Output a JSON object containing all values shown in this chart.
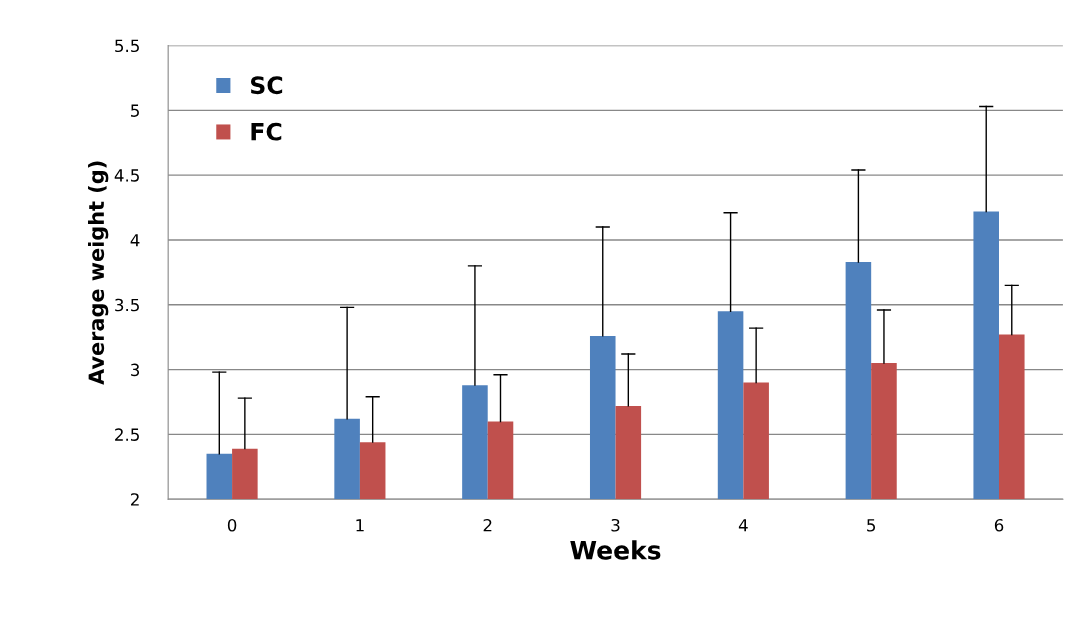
{
  "chart_data": {
    "type": "bar",
    "xlabel": "Weeks",
    "ylabel": "Average weight (g)",
    "categories": [
      "0",
      "1",
      "2",
      "3",
      "4",
      "5",
      "6"
    ],
    "series": [
      {
        "name": "SC",
        "color": "#4f81bd",
        "values": [
          2.35,
          2.62,
          2.88,
          3.26,
          3.45,
          3.83,
          4.22
        ],
        "errors": [
          [
            2.35,
            2.98
          ],
          [
            2.62,
            3.48
          ],
          [
            2.88,
            3.8
          ],
          [
            3.26,
            4.1
          ],
          [
            3.45,
            4.21
          ],
          [
            3.83,
            4.54
          ],
          [
            4.22,
            5.03
          ]
        ]
      },
      {
        "name": "FC",
        "color": "#c0504d",
        "values": [
          2.39,
          2.44,
          2.6,
          2.72,
          2.9,
          3.05,
          3.27
        ],
        "errors": [
          [
            2.39,
            2.78
          ],
          [
            2.44,
            2.79
          ],
          [
            2.6,
            2.96
          ],
          [
            2.72,
            3.12
          ],
          [
            2.9,
            3.32
          ],
          [
            3.05,
            3.46
          ],
          [
            3.27,
            3.65
          ]
        ]
      }
    ],
    "ylim": [
      2,
      5.5
    ],
    "yticks": [
      2,
      2.5,
      3,
      3.5,
      4,
      4.5,
      5,
      5.5
    ],
    "grid": "y",
    "legend": "top left"
  }
}
